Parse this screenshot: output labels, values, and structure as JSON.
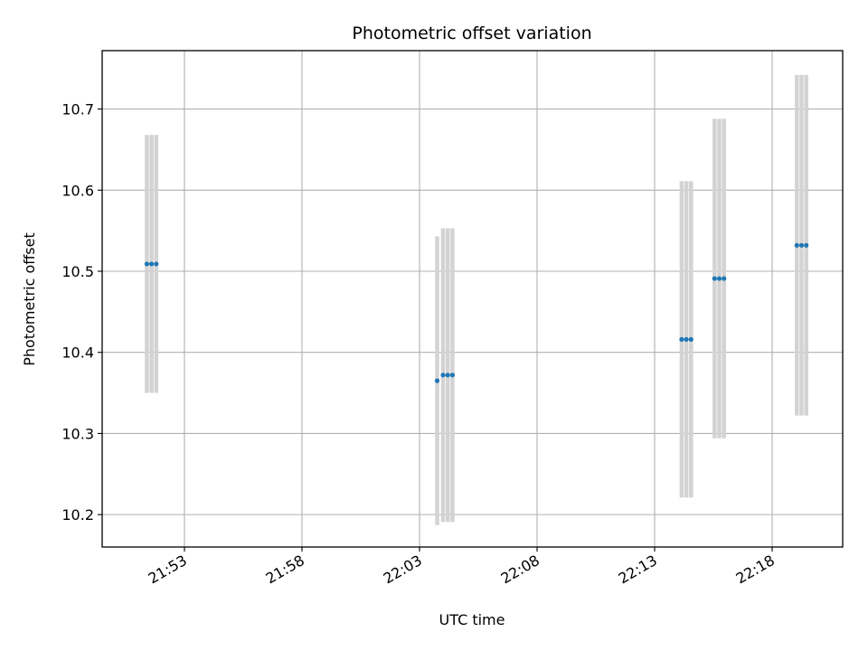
{
  "chart_data": {
    "type": "scatter",
    "title": "Photometric offset variation",
    "xlabel": "UTC time",
    "ylabel": "Photometric offset",
    "grid": true,
    "x_unit": "minutes after 21:00 UTC",
    "xlim": [
      49.5,
      81.0
    ],
    "ylim": [
      10.16,
      10.772
    ],
    "x_ticks": [
      {
        "value": 53,
        "label": "21:53"
      },
      {
        "value": 58,
        "label": "21:58"
      },
      {
        "value": 63,
        "label": "22:03"
      },
      {
        "value": 68,
        "label": "22:08"
      },
      {
        "value": 73,
        "label": "22:13"
      },
      {
        "value": 78,
        "label": "22:18"
      }
    ],
    "y_ticks": [
      {
        "value": 10.2,
        "label": "10.2"
      },
      {
        "value": 10.3,
        "label": "10.3"
      },
      {
        "value": 10.4,
        "label": "10.4"
      },
      {
        "value": 10.5,
        "label": "10.5"
      },
      {
        "value": 10.6,
        "label": "10.6"
      },
      {
        "value": 10.7,
        "label": "10.7"
      }
    ],
    "point_color": "#1f77b4",
    "errorbar_color": "#d3d3d3",
    "series": [
      {
        "points": [
          {
            "x": 51.4,
            "y": 10.509,
            "err": 0.159
          },
          {
            "x": 51.6,
            "y": 10.509,
            "err": 0.159
          },
          {
            "x": 51.8,
            "y": 10.509,
            "err": 0.159
          },
          {
            "x": 63.75,
            "y": 10.365,
            "err": 0.178
          },
          {
            "x": 64.0,
            "y": 10.372,
            "err": 0.181
          },
          {
            "x": 64.2,
            "y": 10.372,
            "err": 0.181
          },
          {
            "x": 64.4,
            "y": 10.372,
            "err": 0.181
          },
          {
            "x": 74.15,
            "y": 10.416,
            "err": 0.195
          },
          {
            "x": 74.35,
            "y": 10.416,
            "err": 0.195
          },
          {
            "x": 74.55,
            "y": 10.416,
            "err": 0.195
          },
          {
            "x": 75.55,
            "y": 10.491,
            "err": 0.197
          },
          {
            "x": 75.75,
            "y": 10.491,
            "err": 0.197
          },
          {
            "x": 75.95,
            "y": 10.491,
            "err": 0.197
          },
          {
            "x": 79.05,
            "y": 10.532,
            "err": 0.21
          },
          {
            "x": 79.25,
            "y": 10.532,
            "err": 0.21
          },
          {
            "x": 79.45,
            "y": 10.532,
            "err": 0.21
          }
        ]
      }
    ]
  }
}
